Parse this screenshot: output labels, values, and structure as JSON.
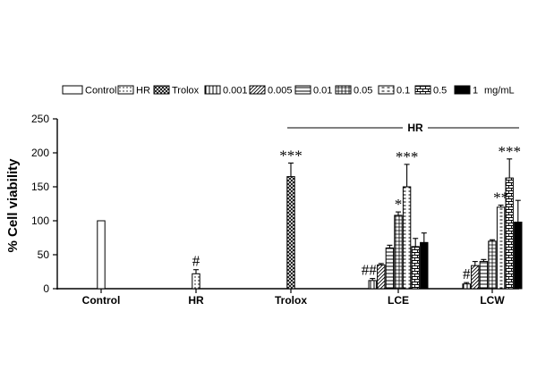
{
  "chart_data": {
    "type": "bar",
    "ylabel": "% Cell viability",
    "ylim": [
      0,
      250
    ],
    "yticks": [
      "0",
      "50",
      "100",
      "150",
      "200",
      "250"
    ],
    "legend_position": "top",
    "bracket_label": "HR",
    "groups": [
      "Control",
      "HR",
      "Trolox",
      "LCE",
      "LCW"
    ],
    "series": [
      {
        "name": "Control",
        "pattern": "empty"
      },
      {
        "name": "HR",
        "pattern": "dots"
      },
      {
        "name": "Trolox",
        "pattern": "crosshatch"
      },
      {
        "name": "0.001",
        "pattern": "vlines"
      },
      {
        "name": "0.005",
        "pattern": "diag"
      },
      {
        "name": "0.01",
        "pattern": "hlines"
      },
      {
        "name": "0.05",
        "pattern": "grid"
      },
      {
        "name": "0.1",
        "pattern": "dashes"
      },
      {
        "name": "0.5",
        "pattern": "bricks"
      },
      {
        "name": "1",
        "pattern": "solid"
      }
    ],
    "legend_unit": "mg/mL",
    "bars": [
      {
        "group": "Control",
        "series": "Control",
        "value": 100,
        "error": 0,
        "sig": ""
      },
      {
        "group": "HR",
        "series": "HR",
        "value": 22,
        "error": 6,
        "sig": "#"
      },
      {
        "group": "Trolox",
        "series": "Trolox",
        "value": 165,
        "error": 20,
        "sig": "***"
      },
      {
        "group": "LCE",
        "series": "0.001",
        "value": 12,
        "error": 3,
        "sig": "##"
      },
      {
        "group": "LCE",
        "series": "0.005",
        "value": 35,
        "error": 2,
        "sig": ""
      },
      {
        "group": "LCE",
        "series": "0.01",
        "value": 60,
        "error": 4,
        "sig": ""
      },
      {
        "group": "LCE",
        "series": "0.05",
        "value": 108,
        "error": 5,
        "sig": "*"
      },
      {
        "group": "LCE",
        "series": "0.1",
        "value": 150,
        "error": 33,
        "sig": "***"
      },
      {
        "group": "LCE",
        "series": "0.5",
        "value": 62,
        "error": 12,
        "sig": ""
      },
      {
        "group": "LCE",
        "series": "1",
        "value": 68,
        "error": 14,
        "sig": ""
      },
      {
        "group": "LCW",
        "series": "0.001",
        "value": 7,
        "error": 2,
        "sig": "#"
      },
      {
        "group": "LCW",
        "series": "0.005",
        "value": 34,
        "error": 6,
        "sig": ""
      },
      {
        "group": "LCW",
        "series": "0.01",
        "value": 40,
        "error": 3,
        "sig": ""
      },
      {
        "group": "LCW",
        "series": "0.05",
        "value": 70,
        "error": 2,
        "sig": ""
      },
      {
        "group": "LCW",
        "series": "0.1",
        "value": 120,
        "error": 3,
        "sig": "**"
      },
      {
        "group": "LCW",
        "series": "0.5",
        "value": 163,
        "error": 28,
        "sig": "***"
      },
      {
        "group": "LCW",
        "series": "1",
        "value": 98,
        "error": 32,
        "sig": ""
      }
    ]
  }
}
